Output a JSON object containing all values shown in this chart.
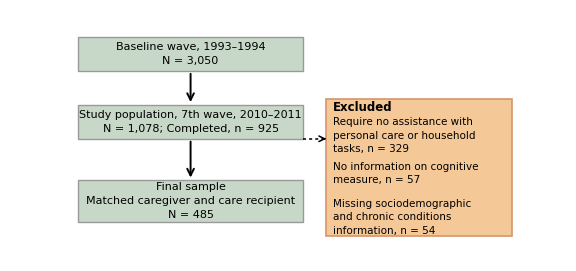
{
  "box1_text": "Baseline wave, 1993–1994\nN = 3,050",
  "box2_text": "Study population, 7th wave, 2010–2011\nN = 1,078; Completed, n = 925",
  "box3_text": "Final sample\nMatched caregiver and care recipient\nN = 485",
  "excl_title": "Excluded",
  "excl_item1": "Require no assistance with\npersonal care or household\ntasks, n = 329",
  "excl_item2": "No information on cognitive\nmeasure, n = 57",
  "excl_item3": "Missing sociodemographic\nand chronic conditions\ninformation, n = 54",
  "box_fill": "#c8d8c8",
  "box_edge": "#999999",
  "excl_fill": "#f5c898",
  "excl_edge": "#d4956a",
  "bg_color": "#ffffff",
  "text_color": "#000000",
  "font_size": 8.0
}
